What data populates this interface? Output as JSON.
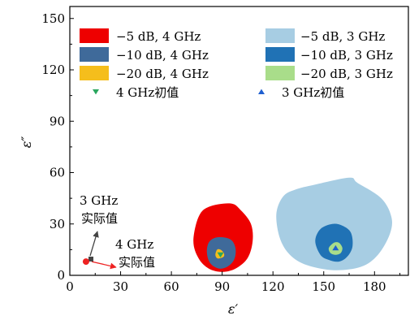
{
  "chart_data": {
    "type": "scatter",
    "title": "",
    "xlabel": "ε′",
    "ylabel": "ε″",
    "xlim": [
      0,
      200
    ],
    "ylim": [
      0,
      157
    ],
    "x_ticks": [
      0,
      30,
      60,
      90,
      120,
      150,
      180
    ],
    "y_ticks": [
      0,
      30,
      60,
      90,
      120,
      150
    ],
    "grid": false,
    "legend_placement": "top",
    "series": [
      {
        "name": "−5 dB, 4 GHz",
        "color": "#ee0000",
        "kind": "region",
        "outline": [
          [
            73,
            20
          ],
          [
            76,
            10
          ],
          [
            82,
            4
          ],
          [
            90,
            2
          ],
          [
            98,
            4
          ],
          [
            105,
            10
          ],
          [
            108,
            20
          ],
          [
            107,
            30
          ],
          [
            101,
            38
          ],
          [
            95,
            42
          ],
          [
            82,
            40
          ],
          [
            76,
            34
          ]
        ]
      },
      {
        "name": "−10 dB, 4 GHz",
        "color": "#3f6a9a",
        "kind": "region",
        "outline": [
          [
            81,
            13
          ],
          [
            83,
            7
          ],
          [
            88,
            4
          ],
          [
            93,
            5
          ],
          [
            97,
            9
          ],
          [
            98,
            15
          ],
          [
            96,
            20
          ],
          [
            92,
            22
          ],
          [
            86,
            22
          ],
          [
            82,
            19
          ]
        ]
      },
      {
        "name": "−20 dB, 4 GHz",
        "color": "#f5be1c",
        "kind": "region",
        "outline": [
          [
            86,
            12
          ],
          [
            87,
            10
          ],
          [
            89,
            10
          ],
          [
            91,
            11
          ],
          [
            91,
            13
          ],
          [
            89,
            15
          ],
          [
            87,
            15
          ]
        ]
      },
      {
        "name": "−5 dB, 3 GHz",
        "color": "#a7cde3",
        "kind": "region",
        "outline": [
          [
            122,
            36
          ],
          [
            124,
            22
          ],
          [
            130,
            12
          ],
          [
            140,
            6
          ],
          [
            156,
            3
          ],
          [
            172,
            5
          ],
          [
            182,
            12
          ],
          [
            189,
            24
          ],
          [
            190,
            34
          ],
          [
            184,
            45
          ],
          [
            170,
            54
          ],
          [
            165,
            57
          ],
          [
            145,
            53
          ],
          [
            133,
            50
          ],
          [
            126,
            46
          ]
        ]
      },
      {
        "name": "−10 dB, 3 GHz",
        "color": "#2072b5",
        "kind": "region",
        "outline": [
          [
            145,
            20
          ],
          [
            148,
            12
          ],
          [
            153,
            9
          ],
          [
            159,
            8
          ],
          [
            164,
            11
          ],
          [
            167,
            17
          ],
          [
            166,
            25
          ],
          [
            161,
            29
          ],
          [
            155,
            30
          ],
          [
            148,
            27
          ]
        ]
      },
      {
        "name": "−20 dB, 3 GHz",
        "color": "#a9dd8a",
        "kind": "region",
        "outline": [
          [
            153,
            16
          ],
          [
            154,
            13
          ],
          [
            157,
            12
          ],
          [
            160,
            13
          ],
          [
            161,
            16
          ],
          [
            159,
            19
          ],
          [
            156,
            19
          ]
        ]
      },
      {
        "name": "4 GHz初值",
        "color": "#2aa65e",
        "kind": "marker",
        "marker": "triangle-down",
        "x": [
          89
        ],
        "y": [
          12
        ]
      },
      {
        "name": "3 GHz初值",
        "color": "#1f5fd0",
        "kind": "marker",
        "marker": "triangle-up",
        "x": [
          157
        ],
        "y": [
          16
        ]
      }
    ],
    "actual_values": [
      {
        "label": "3 GHz\n实际值",
        "x": 12,
        "y": 9.5,
        "color": "#444444",
        "marker": "square"
      },
      {
        "label": "4 GHz\n实际值",
        "x": 11,
        "y": 8.5,
        "color": "#ee2222",
        "marker": "circle"
      }
    ]
  },
  "annotations": {
    "anno_3ghz_line1": "3 GHz",
    "anno_3ghz_line2": "实际值",
    "anno_4ghz_line1": "4 GHz",
    "anno_4ghz_line2": "实际值"
  }
}
